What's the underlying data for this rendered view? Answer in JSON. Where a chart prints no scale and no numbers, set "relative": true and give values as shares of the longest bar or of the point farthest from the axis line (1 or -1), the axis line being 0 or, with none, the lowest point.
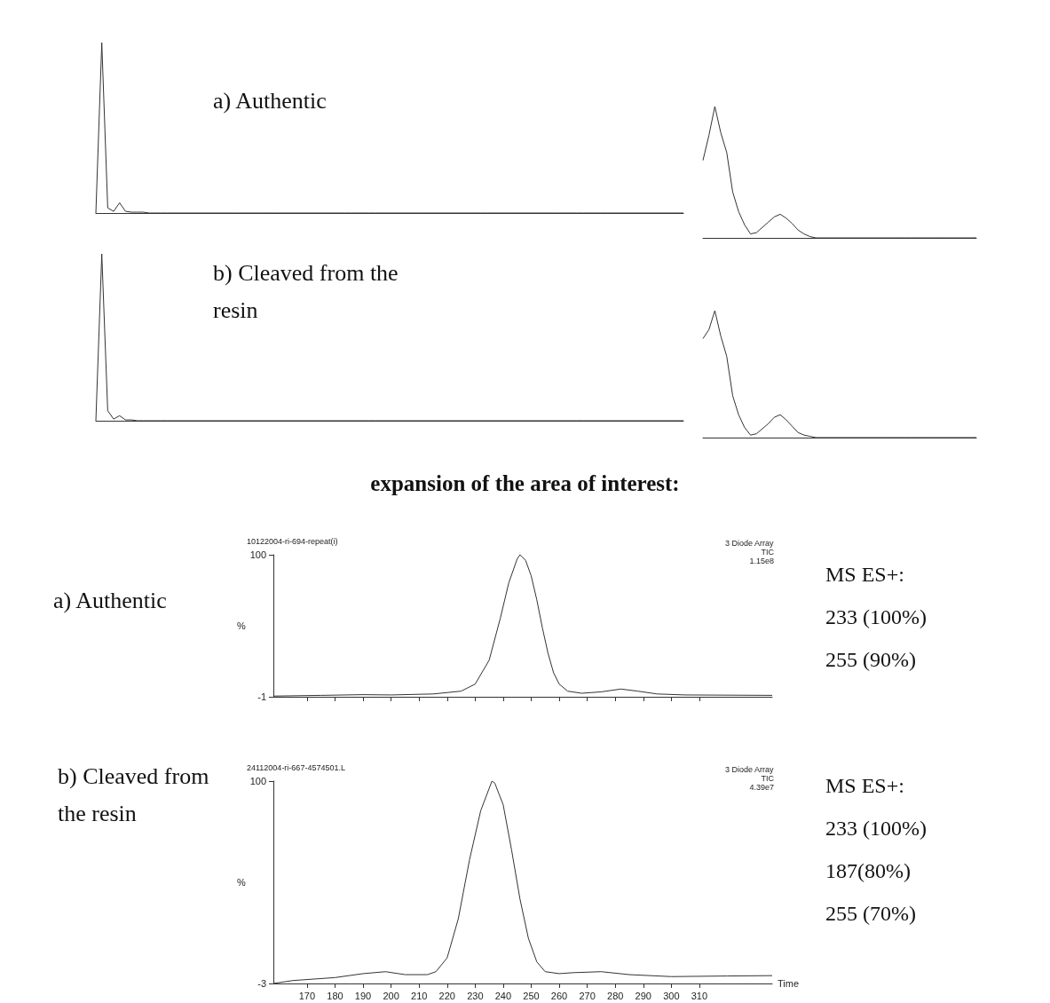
{
  "chart_data": [
    {
      "type": "line",
      "relative": true,
      "marker": "none",
      "annotations": [
        "a) Authentic"
      ],
      "categories": [
        null,
        null,
        null,
        null,
        null,
        null,
        null,
        null,
        null,
        null,
        null,
        null,
        null,
        null,
        null,
        null,
        null,
        null,
        null,
        null,
        null,
        null,
        null,
        null,
        null,
        null,
        null,
        null,
        null,
        null,
        null,
        null,
        null,
        null,
        null,
        null,
        null,
        null,
        null,
        null,
        null,
        null,
        null,
        null,
        null,
        null,
        null,
        null,
        null,
        null,
        null,
        null,
        null,
        null,
        null,
        null,
        null,
        null,
        null,
        null,
        null,
        null,
        null,
        null,
        null,
        null,
        null,
        null,
        null,
        null,
        null,
        null,
        null,
        null,
        null,
        null,
        null,
        null,
        null,
        null,
        null,
        null,
        null,
        null,
        null,
        null,
        null,
        null,
        null,
        null,
        null,
        null,
        null,
        null,
        null,
        null,
        null,
        null,
        null,
        null
      ],
      "series": [
        {
          "color": "#333333",
          "values": [
            0,
            1,
            0.03,
            0.01,
            0.06,
            0.01,
            0.005,
            0.005,
            0.005,
            0,
            0,
            0,
            0,
            0,
            0,
            0,
            0,
            0,
            0,
            0,
            0,
            0,
            0,
            0,
            0,
            0,
            0,
            0,
            0,
            0,
            0,
            0,
            0,
            0,
            0,
            0,
            0,
            0,
            0,
            0,
            0,
            0,
            0,
            0,
            0,
            0,
            0,
            0,
            0,
            0,
            0,
            0,
            0,
            0,
            0,
            0,
            0,
            0,
            0,
            0,
            0,
            0,
            0,
            0,
            0,
            0,
            0,
            0,
            0,
            0,
            0,
            0,
            0,
            0,
            0,
            0,
            0,
            0,
            0,
            0,
            0,
            0,
            0,
            0,
            0,
            0,
            0,
            0,
            0,
            0,
            0,
            0,
            0,
            0,
            0,
            0,
            0,
            0,
            0,
            0
          ]
        }
      ]
    },
    {
      "type": "line",
      "relative": true,
      "marker": "none",
      "annotations": [
        "b) Cleaved from the resin"
      ],
      "categories": [
        null,
        null,
        null,
        null,
        null,
        null,
        null,
        null,
        null,
        null,
        null,
        null,
        null,
        null,
        null,
        null,
        null,
        null,
        null,
        null,
        null,
        null,
        null,
        null,
        null,
        null,
        null,
        null,
        null,
        null,
        null,
        null,
        null,
        null,
        null,
        null,
        null,
        null,
        null,
        null,
        null,
        null,
        null,
        null,
        null,
        null,
        null,
        null,
        null,
        null,
        null,
        null,
        null,
        null,
        null,
        null,
        null,
        null,
        null,
        null,
        null,
        null,
        null,
        null,
        null,
        null,
        null,
        null,
        null,
        null,
        null,
        null,
        null,
        null,
        null,
        null,
        null,
        null,
        null,
        null,
        null,
        null,
        null,
        null,
        null,
        null,
        null,
        null,
        null,
        null,
        null,
        null,
        null,
        null,
        null,
        null,
        null,
        null,
        null,
        null
      ],
      "series": [
        {
          "color": "#333333",
          "values": [
            0,
            1,
            0.06,
            0.01,
            0.03,
            0.005,
            0.005,
            0,
            0,
            0,
            0,
            0,
            0,
            0,
            0,
            0,
            0,
            0,
            0,
            0,
            0,
            0,
            0,
            0,
            0,
            0,
            0,
            0,
            0,
            0,
            0,
            0,
            0,
            0,
            0,
            0,
            0,
            0,
            0,
            0,
            0,
            0,
            0,
            0,
            0,
            0,
            0,
            0,
            0,
            0,
            0,
            0,
            0,
            0,
            0,
            0,
            0,
            0,
            0,
            0,
            0,
            0,
            0,
            0,
            0,
            0,
            0,
            0,
            0,
            0,
            0,
            0,
            0,
            0,
            0,
            0,
            0,
            0,
            0,
            0,
            0,
            0,
            0,
            0,
            0,
            0,
            0,
            0,
            0,
            0,
            0,
            0,
            0,
            0,
            0,
            0,
            0,
            0,
            0,
            0
          ]
        }
      ]
    },
    {
      "type": "line",
      "relative": true,
      "marker": "none",
      "categories": [
        null,
        null,
        null,
        null,
        null,
        null,
        null,
        null,
        null,
        null,
        null,
        null,
        null,
        null,
        null,
        null,
        null,
        null,
        null,
        null,
        null,
        null,
        null,
        null,
        null,
        null,
        null,
        null,
        null,
        null,
        null,
        null,
        null,
        null,
        null,
        null,
        null,
        null,
        null,
        null,
        null,
        null,
        null,
        null,
        null,
        null,
        null
      ],
      "series": [
        {
          "color": "#333333",
          "values": [
            0.59,
            0.78,
            1,
            0.8,
            0.65,
            0.35,
            0.2,
            0.1,
            0.03,
            0.04,
            0.08,
            0.12,
            0.16,
            0.18,
            0.15,
            0.11,
            0.06,
            0.03,
            0.01,
            0,
            0,
            0,
            0,
            0,
            0,
            0,
            0,
            0,
            0,
            0,
            0,
            0,
            0,
            0,
            0,
            0,
            0,
            0,
            0,
            0,
            0,
            0,
            0,
            0,
            0,
            0,
            0
          ]
        }
      ]
    },
    {
      "type": "line",
      "relative": true,
      "marker": "none",
      "categories": [
        null,
        null,
        null,
        null,
        null,
        null,
        null,
        null,
        null,
        null,
        null,
        null,
        null,
        null,
        null,
        null,
        null,
        null,
        null,
        null,
        null,
        null,
        null,
        null,
        null,
        null,
        null,
        null,
        null,
        null,
        null,
        null,
        null,
        null,
        null,
        null,
        null,
        null,
        null,
        null,
        null,
        null,
        null,
        null,
        null,
        null,
        null
      ],
      "series": [
        {
          "color": "#333333",
          "values": [
            0.78,
            0.85,
            1,
            0.8,
            0.64,
            0.33,
            0.18,
            0.08,
            0.02,
            0.03,
            0.07,
            0.11,
            0.16,
            0.18,
            0.14,
            0.09,
            0.04,
            0.02,
            0.01,
            0,
            0,
            0,
            0,
            0,
            0,
            0,
            0,
            0,
            0,
            0,
            0,
            0,
            0,
            0,
            0,
            0,
            0,
            0,
            0,
            0,
            0,
            0,
            0,
            0,
            0,
            0,
            0
          ]
        }
      ]
    },
    {
      "type": "line",
      "title": "expansion of the area of interest:",
      "subtitle": "10122004-ri-694-repeat(i)",
      "ylabel": "%",
      "marker": "none",
      "tick_labels": "y",
      "annotations": [
        "a) Authentic",
        "3 Diode Array",
        "TIC",
        "1.15e8",
        "MS ES+:",
        "233 (100%)",
        "255 (90%)"
      ],
      "xlim": [
        158,
        336
      ],
      "xticks": [
        170,
        180,
        190,
        200,
        210,
        220,
        230,
        240,
        250,
        260,
        270,
        280,
        290,
        300,
        310
      ],
      "ylim": [
        -1,
        100
      ],
      "yticks": [
        -1,
        100
      ],
      "x": [
        158,
        175,
        190,
        200,
        215,
        225,
        230,
        235,
        239,
        242,
        245,
        246,
        248,
        250,
        252,
        254,
        256,
        258,
        260,
        263,
        268,
        275,
        282,
        288,
        295,
        305,
        336
      ],
      "series": [
        {
          "color": "#333333",
          "values": [
            -0.5,
            0,
            0.5,
            0.3,
            1,
            3,
            8,
            25,
            55,
            80,
            97,
            100,
            96,
            85,
            68,
            48,
            30,
            16,
            8,
            3,
            1.5,
            2.5,
            4.5,
            3,
            1,
            0.3,
            0
          ]
        }
      ]
    },
    {
      "type": "line",
      "subtitle": "24112004-ri-667-4574501.L",
      "ylabel": "%",
      "xlabel": "Time",
      "marker": "none",
      "annotations": [
        "b) Cleaved from the resin",
        "3 Diode Array",
        "TIC",
        "4.39e7",
        "MS ES+:",
        "233 (100%)",
        "187(80%)",
        "255 (70%)"
      ],
      "xlim": [
        158,
        336
      ],
      "xticks": [
        170,
        180,
        190,
        200,
        210,
        220,
        230,
        240,
        250,
        260,
        270,
        280,
        290,
        300,
        310
      ],
      "ylim": [
        -3,
        100
      ],
      "yticks": [
        -3,
        100
      ],
      "x": [
        158,
        165,
        180,
        190,
        198,
        205,
        213,
        216,
        220,
        224,
        228,
        232,
        236,
        237,
        240,
        243,
        246,
        249,
        252,
        255,
        260,
        265,
        275,
        285,
        300,
        320,
        336
      ],
      "series": [
        {
          "color": "#333333",
          "values": [
            -3,
            -1.5,
            0,
            2,
            3,
            1.5,
            1.5,
            3,
            10,
            30,
            60,
            85,
            100,
            99,
            88,
            65,
            40,
            20,
            8,
            3,
            2,
            2.5,
            3,
            1.5,
            0.5,
            0.8,
            1
          ]
        }
      ]
    }
  ]
}
